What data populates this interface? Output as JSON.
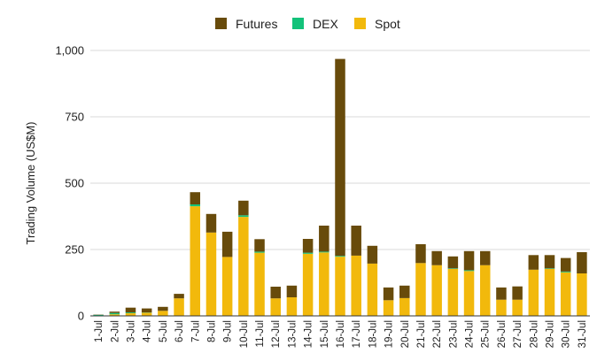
{
  "chart_data": {
    "type": "bar",
    "stacked": true,
    "title": "",
    "xlabel": "",
    "ylabel": "Trading Volume (US$M)",
    "ylim": [
      0,
      1000
    ],
    "yticks": [
      0,
      250,
      500,
      750,
      1000
    ],
    "ytick_labels": [
      "0",
      "250",
      "500",
      "750",
      "1,000"
    ],
    "grid": true,
    "legend": "top",
    "categories": [
      "1-Jul",
      "2-Jul",
      "3-Jul",
      "4-Jul",
      "5-Jul",
      "6-Jul",
      "7-Jul",
      "8-Jul",
      "9-Jul",
      "10-Jul",
      "11-Jul",
      "12-Jul",
      "13-Jul",
      "14-Jul",
      "15-Jul",
      "16-Jul",
      "17-Jul",
      "18-Jul",
      "19-Jul",
      "20-Jul",
      "21-Jul",
      "22-Jul",
      "23-Jul",
      "24-Jul",
      "25-Jul",
      "26-Jul",
      "27-Jul",
      "28-Jul",
      "29-Jul",
      "30-Jul",
      "31-Jul"
    ],
    "series": [
      {
        "name": "Spot",
        "color": "#f2b90c",
        "values": [
          1,
          6,
          10,
          12,
          19,
          66,
          413,
          314,
          222,
          373,
          238,
          66,
          70,
          234,
          239,
          223,
          227,
          197,
          59,
          67,
          199,
          191,
          177,
          169,
          191,
          61,
          61,
          174,
          177,
          164,
          160
        ]
      },
      {
        "name": "DEX",
        "color": "#13c27a",
        "values": [
          3,
          5,
          3,
          1,
          0,
          0,
          7,
          0,
          0,
          6,
          4,
          0,
          0,
          4,
          3,
          3,
          0,
          0,
          0,
          0,
          0,
          0,
          2,
          3,
          0,
          0,
          0,
          0,
          2,
          3,
          0
        ]
      },
      {
        "name": "Futures",
        "color": "#684b0b",
        "values": [
          1,
          5,
          18,
          15,
          15,
          17,
          46,
          70,
          95,
          55,
          47,
          44,
          44,
          52,
          98,
          742,
          113,
          67,
          48,
          47,
          71,
          53,
          45,
          72,
          53,
          46,
          50,
          55,
          50,
          51,
          80
        ]
      }
    ],
    "legend_order": [
      "Futures",
      "DEX",
      "Spot"
    ]
  }
}
